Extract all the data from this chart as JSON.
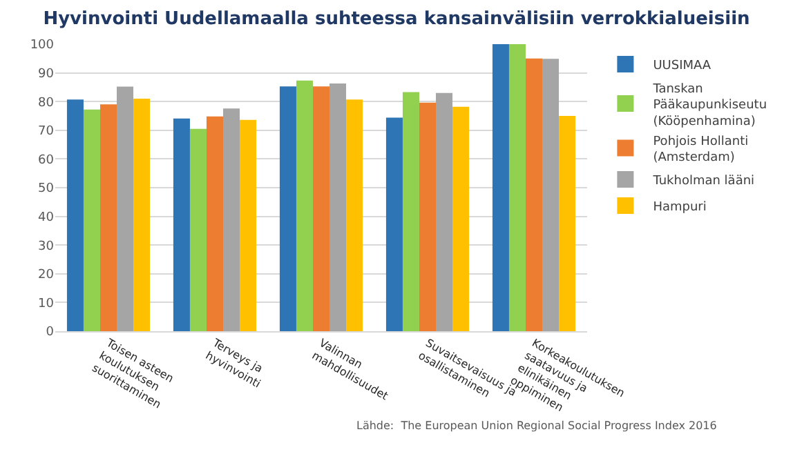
{
  "chart_data": {
    "type": "bar",
    "title": "Hyvinvointi Uudellamaalla suhteessa kansainvälisiin verrokkialueisiin",
    "categories": [
      "Toisen asteen koulutuksen suorittaminen",
      "Terveys ja hyvinvointi",
      "Valinnan mahdollisuudet",
      "Suvaitsevaisuus ja osallistaminen",
      "Korkeakoulutuksen saatavuus ja elinikäinen oppiminen"
    ],
    "series": [
      {
        "name": "UUSIMAA",
        "color": "#2e75b6",
        "values": [
          80.7,
          74.1,
          85.3,
          74.4,
          100
        ]
      },
      {
        "name": "Tanskan Pääkaupunkiseutu (Kööpenhamina)",
        "color": "#92d050",
        "values": [
          77.2,
          70.5,
          87.3,
          83.3,
          100
        ]
      },
      {
        "name": "Pohjois Hollanti (Amsterdam)",
        "color": "#ed7d31",
        "values": [
          79,
          74.8,
          85.3,
          79.6,
          95
        ]
      },
      {
        "name": "Tukholman lääni",
        "color": "#a5a5a5",
        "values": [
          85.2,
          77.6,
          86.3,
          83,
          94.9
        ]
      },
      {
        "name": "Hampuri",
        "color": "#ffc000",
        "values": [
          81,
          73.6,
          80.7,
          78.2,
          75
        ]
      }
    ],
    "ylim": [
      0,
      100
    ],
    "yticks": [
      0,
      10,
      20,
      30,
      40,
      50,
      60,
      70,
      80,
      90,
      100
    ],
    "grid": "y",
    "legend": "right",
    "annotations": [
      "Lähde:  The European Union Regional Social Progress Index 2016"
    ]
  }
}
